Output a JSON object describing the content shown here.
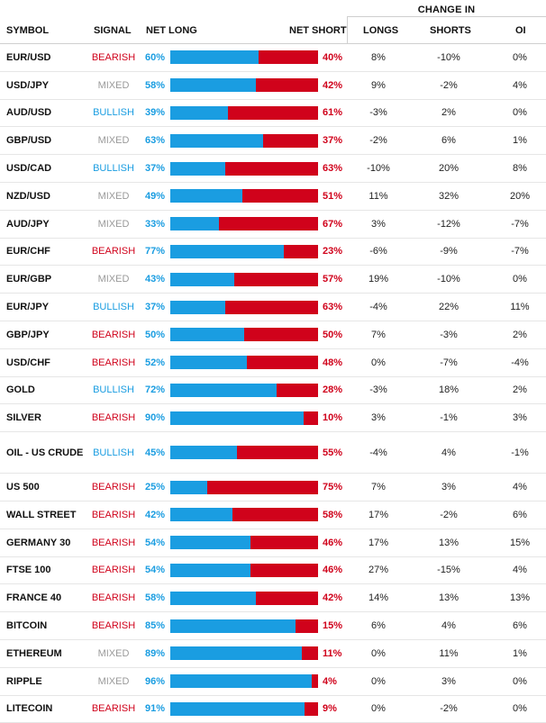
{
  "header": {
    "change_in": "CHANGE IN",
    "symbol": "SYMBOL",
    "signal": "SIGNAL",
    "net_long": "NET LONG",
    "net_short": "NET SHORT",
    "longs": "LONGS",
    "shorts": "SHORTS",
    "oi": "OI"
  },
  "colors": {
    "long_blue": "#1a9de1",
    "short_red": "#d0021b",
    "mixed_gray": "#9a9a9a"
  },
  "rows": [
    {
      "symbol": "EUR/USD",
      "signal": "BEARISH",
      "net_long": "60%",
      "long_fraction": 0.6,
      "net_short": "40%",
      "longs": "8%",
      "shorts": "-10%",
      "oi": "0%"
    },
    {
      "symbol": "USD/JPY",
      "signal": "MIXED",
      "net_long": "58%",
      "long_fraction": 0.58,
      "net_short": "42%",
      "longs": "9%",
      "shorts": "-2%",
      "oi": "4%"
    },
    {
      "symbol": "AUD/USD",
      "signal": "BULLISH",
      "net_long": "39%",
      "long_fraction": 0.39,
      "net_short": "61%",
      "longs": "-3%",
      "shorts": "2%",
      "oi": "0%"
    },
    {
      "symbol": "GBP/USD",
      "signal": "MIXED",
      "net_long": "63%",
      "long_fraction": 0.63,
      "net_short": "37%",
      "longs": "-2%",
      "shorts": "6%",
      "oi": "1%"
    },
    {
      "symbol": "USD/CAD",
      "signal": "BULLISH",
      "net_long": "37%",
      "long_fraction": 0.37,
      "net_short": "63%",
      "longs": "-10%",
      "shorts": "20%",
      "oi": "8%"
    },
    {
      "symbol": "NZD/USD",
      "signal": "MIXED",
      "net_long": "49%",
      "long_fraction": 0.49,
      "net_short": "51%",
      "longs": "11%",
      "shorts": "32%",
      "oi": "20%"
    },
    {
      "symbol": "AUD/JPY",
      "signal": "MIXED",
      "net_long": "33%",
      "long_fraction": 0.33,
      "net_short": "67%",
      "longs": "3%",
      "shorts": "-12%",
      "oi": "-7%"
    },
    {
      "symbol": "EUR/CHF",
      "signal": "BEARISH",
      "net_long": "77%",
      "long_fraction": 0.77,
      "net_short": "23%",
      "longs": "-6%",
      "shorts": "-9%",
      "oi": "-7%"
    },
    {
      "symbol": "EUR/GBP",
      "signal": "MIXED",
      "net_long": "43%",
      "long_fraction": 0.43,
      "net_short": "57%",
      "longs": "19%",
      "shorts": "-10%",
      "oi": "0%"
    },
    {
      "symbol": "EUR/JPY",
      "signal": "BULLISH",
      "net_long": "37%",
      "long_fraction": 0.37,
      "net_short": "63%",
      "longs": "-4%",
      "shorts": "22%",
      "oi": "11%"
    },
    {
      "symbol": "GBP/JPY",
      "signal": "BEARISH",
      "net_long": "50%",
      "long_fraction": 0.5,
      "net_short": "50%",
      "longs": "7%",
      "shorts": "-3%",
      "oi": "2%"
    },
    {
      "symbol": "USD/CHF",
      "signal": "BEARISH",
      "net_long": "52%",
      "long_fraction": 0.52,
      "net_short": "48%",
      "longs": "0%",
      "shorts": "-7%",
      "oi": "-4%"
    },
    {
      "symbol": "GOLD",
      "signal": "BULLISH",
      "net_long": "72%",
      "long_fraction": 0.72,
      "net_short": "28%",
      "longs": "-3%",
      "shorts": "18%",
      "oi": "2%"
    },
    {
      "symbol": "SILVER",
      "signal": "BEARISH",
      "net_long": "90%",
      "long_fraction": 0.9,
      "net_short": "10%",
      "longs": "3%",
      "shorts": "-1%",
      "oi": "3%"
    },
    {
      "symbol": "OIL - US CRUDE",
      "signal": "BULLISH",
      "net_long": "45%",
      "long_fraction": 0.45,
      "net_short": "55%",
      "longs": "-4%",
      "shorts": "4%",
      "oi": "-1%"
    },
    {
      "symbol": "US 500",
      "signal": "BEARISH",
      "net_long": "25%",
      "long_fraction": 0.25,
      "net_short": "75%",
      "longs": "7%",
      "shorts": "3%",
      "oi": "4%"
    },
    {
      "symbol": "WALL STREET",
      "signal": "BEARISH",
      "net_long": "42%",
      "long_fraction": 0.42,
      "net_short": "58%",
      "longs": "17%",
      "shorts": "-2%",
      "oi": "6%"
    },
    {
      "symbol": "GERMANY 30",
      "signal": "BEARISH",
      "net_long": "54%",
      "long_fraction": 0.54,
      "net_short": "46%",
      "longs": "17%",
      "shorts": "13%",
      "oi": "15%"
    },
    {
      "symbol": "FTSE 100",
      "signal": "BEARISH",
      "net_long": "54%",
      "long_fraction": 0.54,
      "net_short": "46%",
      "longs": "27%",
      "shorts": "-15%",
      "oi": "4%"
    },
    {
      "symbol": "FRANCE 40",
      "signal": "BEARISH",
      "net_long": "58%",
      "long_fraction": 0.58,
      "net_short": "42%",
      "longs": "14%",
      "shorts": "13%",
      "oi": "13%"
    },
    {
      "symbol": "BITCOIN",
      "signal": "BEARISH",
      "net_long": "85%",
      "long_fraction": 0.85,
      "net_short": "15%",
      "longs": "6%",
      "shorts": "4%",
      "oi": "6%"
    },
    {
      "symbol": "ETHEREUM",
      "signal": "MIXED",
      "net_long": "89%",
      "long_fraction": 0.89,
      "net_short": "11%",
      "longs": "0%",
      "shorts": "11%",
      "oi": "1%"
    },
    {
      "symbol": "RIPPLE",
      "signal": "MIXED",
      "net_long": "96%",
      "long_fraction": 0.96,
      "net_short": "4%",
      "longs": "0%",
      "shorts": "3%",
      "oi": "0%"
    },
    {
      "symbol": "LITECOIN",
      "signal": "BEARISH",
      "net_long": "91%",
      "long_fraction": 0.91,
      "net_short": "9%",
      "longs": "0%",
      "shorts": "-2%",
      "oi": "0%"
    }
  ]
}
